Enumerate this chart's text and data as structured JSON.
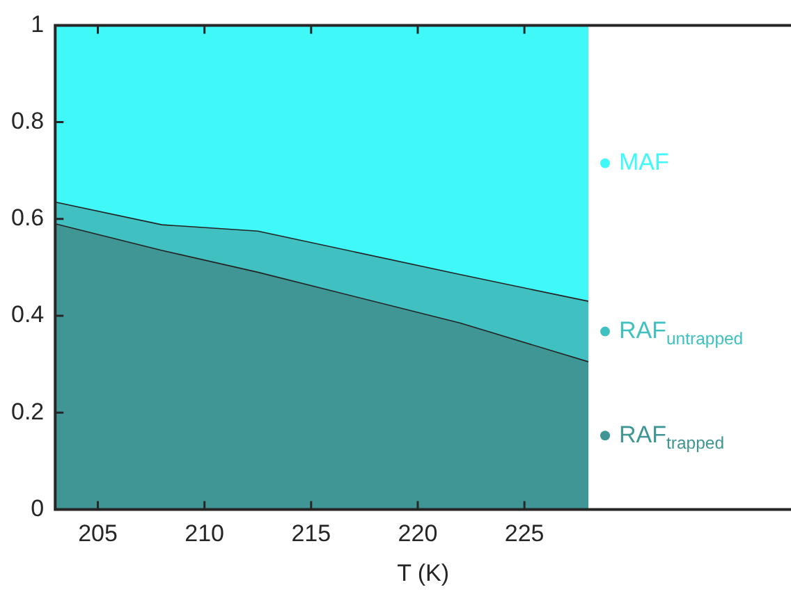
{
  "chart_data": {
    "type": "area",
    "stacked": true,
    "xlabel": "T (K)",
    "x": [
      203,
      208,
      212.5,
      222,
      228
    ],
    "series": [
      {
        "name": "RAF$_{trapped}$",
        "color": "#409595",
        "values": [
          0.59,
          0.535,
          0.49,
          0.385,
          0.305
        ]
      },
      {
        "name": "RAF$_{untrapped}$",
        "color": "#40c0c0",
        "values": [
          0.045,
          0.053,
          0.085,
          0.1,
          0.125
        ]
      },
      {
        "name": "MAF",
        "color": "#40f8f8",
        "values": [
          0.365,
          0.412,
          0.425,
          0.515,
          0.57
        ]
      }
    ],
    "xlim": [
      203,
      237.5
    ],
    "xticks": [
      205,
      210,
      215,
      220,
      225
    ],
    "ylim": [
      0,
      1
    ],
    "yticks": [
      0,
      0.2,
      0.4,
      0.6,
      0.8,
      1
    ],
    "grid": false,
    "legend": "right"
  }
}
